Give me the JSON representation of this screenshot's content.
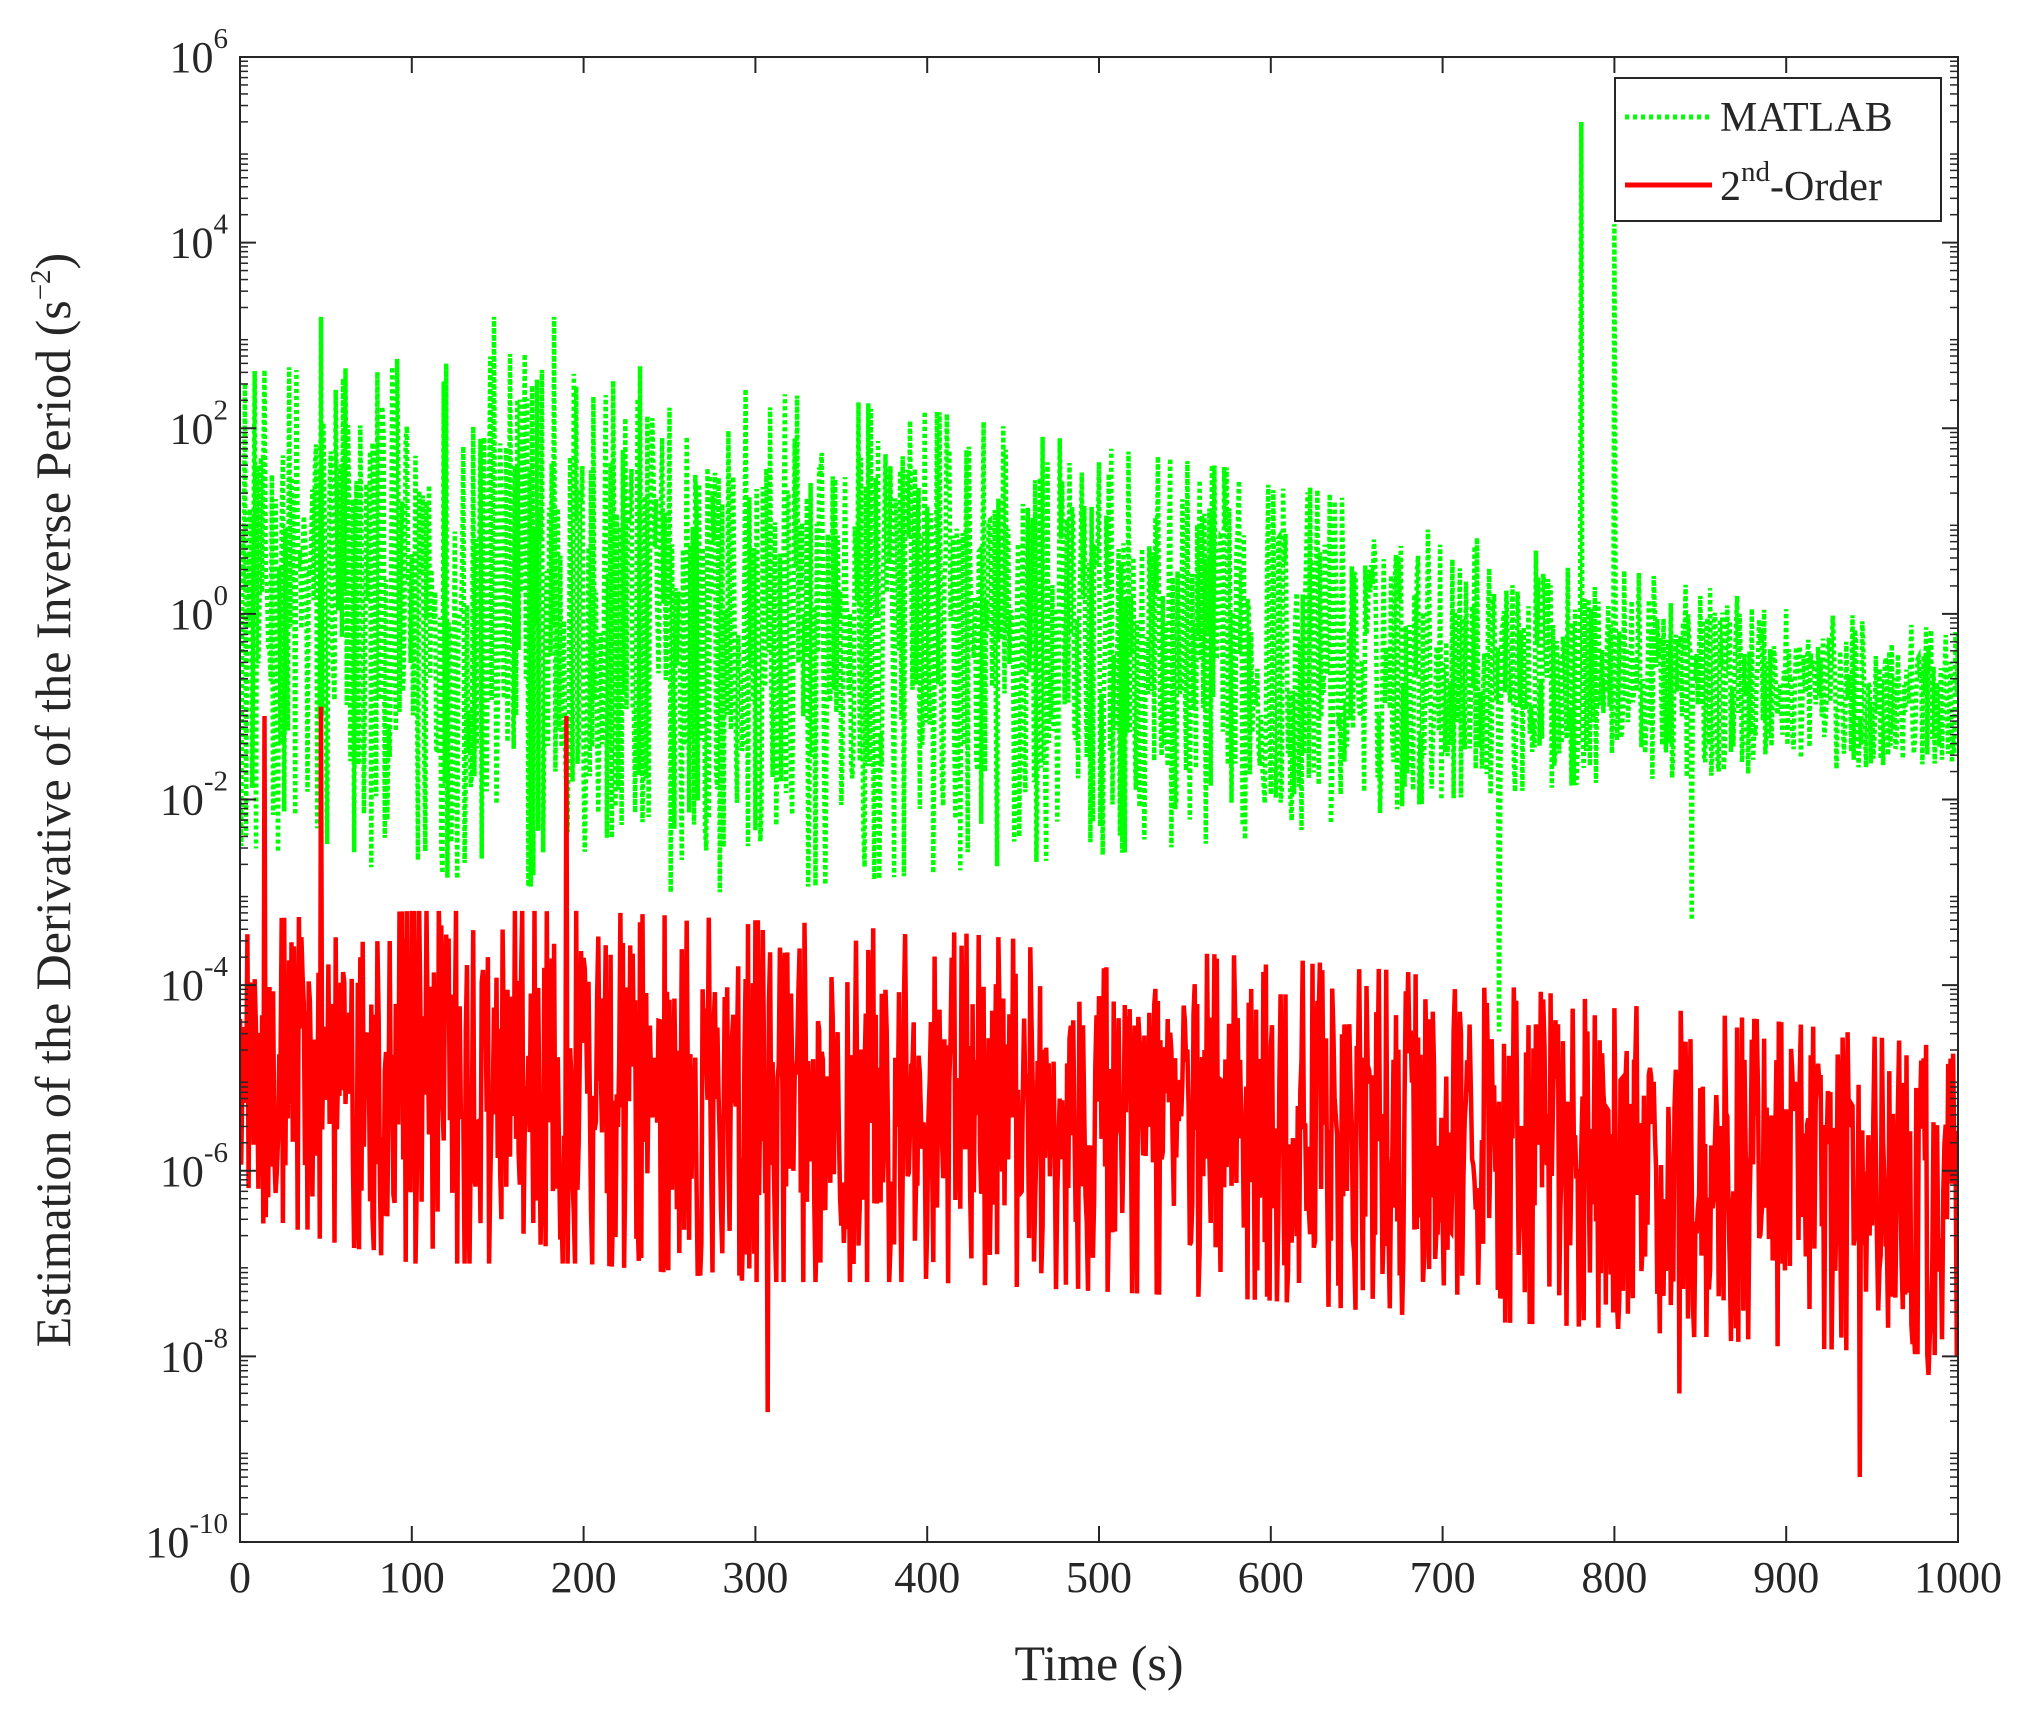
{
  "chart_data": {
    "type": "line",
    "title": "",
    "xlabel": "Time (s)",
    "ylabel": {
      "main": "Estimation of the Derivative of the Inverse Period (s",
      "exp": "−2",
      "close": ")"
    },
    "xlim": [
      0,
      1000
    ],
    "ylim": [
      1e-10,
      1000000.0
    ],
    "y_scale": "log",
    "grid": false,
    "legend_position": "top-right",
    "xticks": [
      0,
      100,
      200,
      300,
      400,
      500,
      600,
      700,
      800,
      900,
      1000
    ],
    "yticks": [
      {
        "value": 1e-10,
        "base": "10",
        "exp": "-10"
      },
      {
        "value": 1e-08,
        "base": "10",
        "exp": "-8"
      },
      {
        "value": 1e-06,
        "base": "10",
        "exp": "-6"
      },
      {
        "value": 0.0001,
        "base": "10",
        "exp": "-4"
      },
      {
        "value": 0.01,
        "base": "10",
        "exp": "-2"
      },
      {
        "value": 1,
        "base": "10",
        "exp": "0"
      },
      {
        "value": 100,
        "base": "10",
        "exp": "2"
      },
      {
        "value": 10000,
        "base": "10",
        "exp": "4"
      },
      {
        "value": 1000000,
        "base": "10",
        "exp": "6"
      }
    ],
    "series": [
      {
        "name": "MATLAB",
        "color": "#00ff00",
        "style": "dotted",
        "description": "Oscillates mostly between 1e-3 and 1e3; envelope decays with time; late values near 1e-2 to 1; spikes to ~2e5 near t=781 and ~1e4 near t=800.",
        "upper_envelope_log10": [
          [
            0,
            2.6
          ],
          [
            100,
            2.8
          ],
          [
            200,
            2.8
          ],
          [
            300,
            2.4
          ],
          [
            400,
            2.2
          ],
          [
            500,
            1.8
          ],
          [
            600,
            1.5
          ],
          [
            700,
            0.9
          ],
          [
            800,
            0.5
          ],
          [
            900,
            0.1
          ],
          [
            1000,
            -0.2
          ]
        ],
        "lower_envelope_log10": [
          [
            0,
            -2.5
          ],
          [
            100,
            -2.8
          ],
          [
            200,
            -3.0
          ],
          [
            300,
            -3.0
          ],
          [
            400,
            -2.8
          ],
          [
            500,
            -2.6
          ],
          [
            600,
            -2.4
          ],
          [
            700,
            -2.0
          ],
          [
            800,
            -1.8
          ],
          [
            900,
            -1.7
          ],
          [
            1000,
            -1.6
          ]
        ],
        "spikes": [
          [
            781,
            5.3
          ],
          [
            800,
            4.2
          ],
          [
            47,
            3.2
          ],
          [
            148,
            3.2
          ],
          [
            183,
            3.2
          ],
          [
            733,
            -4.5
          ],
          [
            845,
            -3.3
          ]
        ]
      },
      {
        "name": "2nd-Order",
        "color": "#ff0000",
        "style": "solid",
        "description": "Oscillates mostly between 1e-8 and 1e-3; envelope decays slowly; spikes to ~1e-1 near t=14, 47, 190; minimum ~5e-10 near t=943.",
        "upper_envelope_log10": [
          [
            0,
            -3.3
          ],
          [
            100,
            -3.2
          ],
          [
            200,
            -3.2
          ],
          [
            300,
            -3.3
          ],
          [
            400,
            -3.4
          ],
          [
            500,
            -3.6
          ],
          [
            600,
            -3.7
          ],
          [
            700,
            -3.9
          ],
          [
            800,
            -4.2
          ],
          [
            900,
            -4.4
          ],
          [
            1000,
            -4.7
          ]
        ],
        "lower_envelope_log10": [
          [
            0,
            -6.5
          ],
          [
            100,
            -7.0
          ],
          [
            200,
            -7.0
          ],
          [
            300,
            -7.2
          ],
          [
            400,
            -7.2
          ],
          [
            500,
            -7.3
          ],
          [
            600,
            -7.4
          ],
          [
            700,
            -7.6
          ],
          [
            800,
            -7.7
          ],
          [
            900,
            -7.9
          ],
          [
            1000,
            -8.0
          ]
        ],
        "spikes": [
          [
            14,
            -1.1
          ],
          [
            47,
            -1.0
          ],
          [
            190,
            -1.1
          ],
          [
            943,
            -9.3
          ],
          [
            307,
            -8.6
          ],
          [
            838,
            -8.4
          ],
          [
            983,
            -8.2
          ]
        ]
      }
    ],
    "legend": {
      "entries": [
        {
          "label": "MATLAB"
        },
        {
          "label_base": "2",
          "label_sup": "nd",
          "label_rest": "-Order"
        }
      ]
    }
  }
}
